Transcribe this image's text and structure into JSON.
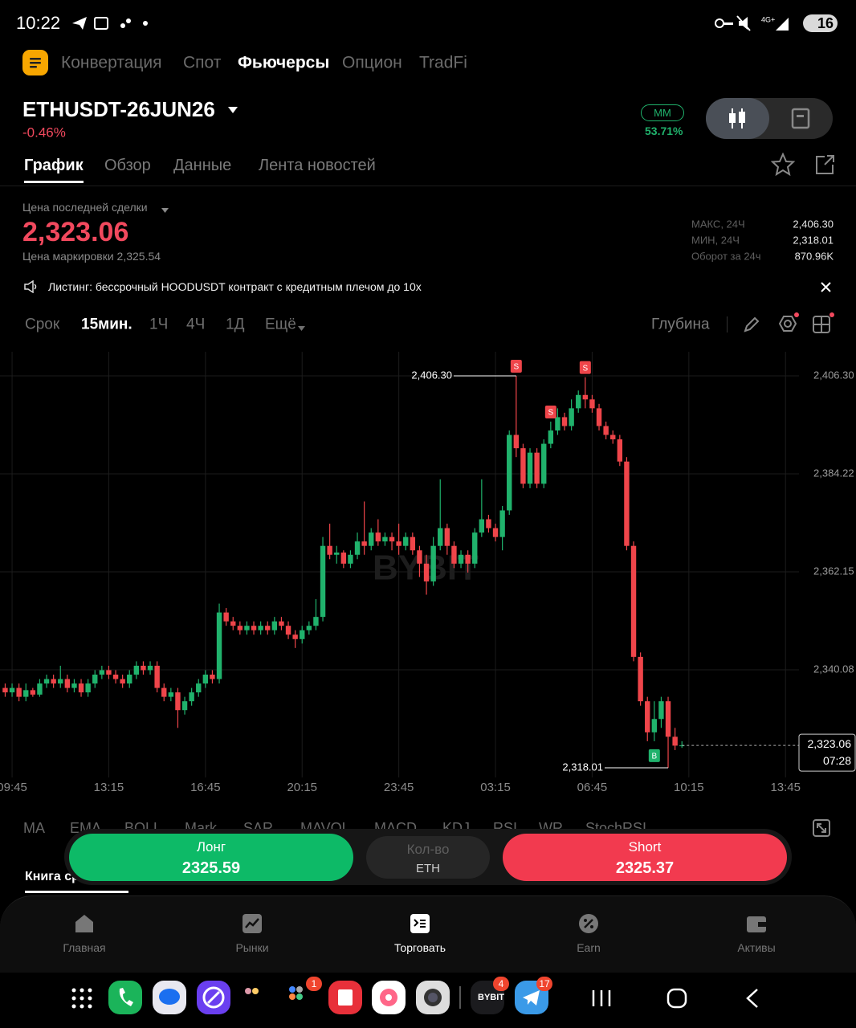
{
  "status_bar": {
    "time": "10:22",
    "battery": "16"
  },
  "top_tabs": [
    "Конвертация",
    "Спот",
    "Фьючерсы",
    "Опцион",
    "TradFi"
  ],
  "symbol": {
    "name": "ETHUSDT-26JUN26",
    "change": "-0.46%",
    "mm_label": "MM",
    "mm_value": "53.71%"
  },
  "sub_tabs": [
    "График",
    "Обзор",
    "Данные",
    "Лента новостей"
  ],
  "price": {
    "last_label": "Цена последней сделки",
    "last": "2,323.06",
    "mark": "Цена маркировки 2,325.54"
  },
  "stats": [
    {
      "label": "МАКС, 24Ч",
      "value": "2,406.30"
    },
    {
      "label": "МИН, 24Ч",
      "value": "2,318.01"
    },
    {
      "label": "Оборот за 24ч",
      "value": "870.96K"
    }
  ],
  "banner": "Листинг: бессрочный HOODUSDT контракт  с кредитным плечом до 10x",
  "timeframes": [
    "Срок",
    "15мин.",
    "1Ч",
    "4Ч",
    "1Д",
    "Ещё"
  ],
  "depth": "Глубина",
  "chart_data": {
    "type": "candlestick",
    "watermark": "BYBIT",
    "up_color": "#20b26c",
    "down_color": "#ef454a",
    "xlim": [
      -0.75,
      114.95
    ],
    "xticks": [
      {
        "value": 1,
        "label": "09:45"
      },
      {
        "value": 15,
        "label": "13:15"
      },
      {
        "value": 29,
        "label": "16:45"
      },
      {
        "value": 43,
        "label": "20:15"
      },
      {
        "value": 57,
        "label": "23:45"
      },
      {
        "value": 71,
        "label": "03:15"
      },
      {
        "value": 85,
        "label": "06:45"
      },
      {
        "value": 99,
        "label": "10:15"
      },
      {
        "value": 113,
        "label": "13:45"
      }
    ],
    "ylim": [
      2315.84,
      2411.73
    ],
    "yticks": [
      {
        "value": 2406.3,
        "label": "2,406.30"
      },
      {
        "value": 2384.22,
        "label": "2,384.22"
      },
      {
        "value": 2362.15,
        "label": "2,362.15"
      },
      {
        "value": 2340.08,
        "label": "2,340.08"
      }
    ],
    "grid": true,
    "candles": [
      [
        2336,
        2337,
        2334,
        2335
      ],
      [
        2335,
        2337,
        2334,
        2336
      ],
      [
        2336,
        2337,
        2333,
        2334
      ],
      [
        2334,
        2337,
        2333,
        2335.5
      ],
      [
        2335.5,
        2336,
        2334,
        2334.5
      ],
      [
        2334.5,
        2338,
        2334,
        2337
      ],
      [
        2337,
        2339,
        2336,
        2338
      ],
      [
        2338,
        2339,
        2336,
        2337
      ],
      [
        2337,
        2341,
        2336,
        2338
      ],
      [
        2338,
        2339,
        2335,
        2336
      ],
      [
        2336,
        2338,
        2335,
        2337
      ],
      [
        2337,
        2338,
        2334,
        2335
      ],
      [
        2335,
        2338,
        2334,
        2337
      ],
      [
        2337,
        2340,
        2336,
        2339
      ],
      [
        2339,
        2341,
        2338,
        2340
      ],
      [
        2340,
        2341,
        2338,
        2339
      ],
      [
        2339,
        2340,
        2337,
        2338
      ],
      [
        2338,
        2339,
        2336,
        2337
      ],
      [
        2337,
        2340,
        2336,
        2339
      ],
      [
        2339,
        2342,
        2338,
        2341
      ],
      [
        2341,
        2342,
        2339,
        2340
      ],
      [
        2340,
        2342,
        2339,
        2341
      ],
      [
        2341,
        2342,
        2335,
        2336
      ],
      [
        2336,
        2337,
        2333,
        2334
      ],
      [
        2334,
        2336,
        2333,
        2335
      ],
      [
        2335,
        2336,
        2327,
        2331
      ],
      [
        2331,
        2334,
        2330,
        2333
      ],
      [
        2333,
        2336,
        2332,
        2335
      ],
      [
        2335,
        2338,
        2334,
        2337
      ],
      [
        2337,
        2340,
        2336,
        2339
      ],
      [
        2339,
        2340,
        2337,
        2338
      ],
      [
        2338,
        2355,
        2337,
        2353
      ],
      [
        2353,
        2354,
        2350,
        2351
      ],
      [
        2351,
        2352,
        2349,
        2350
      ],
      [
        2350,
        2351,
        2348,
        2349
      ],
      [
        2349,
        2351,
        2348,
        2350
      ],
      [
        2350,
        2351,
        2348,
        2349
      ],
      [
        2349,
        2351,
        2348,
        2350
      ],
      [
        2350,
        2351,
        2348,
        2349
      ],
      [
        2349,
        2352,
        2348,
        2351
      ],
      [
        2351,
        2352,
        2349,
        2350
      ],
      [
        2350,
        2351,
        2347,
        2348
      ],
      [
        2348,
        2349,
        2345,
        2347
      ],
      [
        2347,
        2350,
        2346,
        2349
      ],
      [
        2349,
        2351,
        2348,
        2350
      ],
      [
        2350,
        2356,
        2349,
        2352
      ],
      [
        2352,
        2370,
        2351,
        2368
      ],
      [
        2368,
        2373,
        2365,
        2366
      ],
      [
        2366,
        2368,
        2364,
        2366.5
      ],
      [
        2366.5,
        2367,
        2363,
        2364
      ],
      [
        2364,
        2367,
        2363,
        2366
      ],
      [
        2366,
        2371,
        2365,
        2369
      ],
      [
        2369,
        2378,
        2366,
        2368
      ],
      [
        2368,
        2372,
        2367,
        2371
      ],
      [
        2371,
        2374,
        2368,
        2369
      ],
      [
        2369,
        2371,
        2368,
        2370
      ],
      [
        2370,
        2371,
        2367,
        2369
      ],
      [
        2369,
        2373,
        2366,
        2368
      ],
      [
        2368,
        2371,
        2367,
        2370
      ],
      [
        2370,
        2371,
        2366,
        2367
      ],
      [
        2367,
        2368,
        2361,
        2364
      ],
      [
        2364,
        2366,
        2357,
        2360
      ],
      [
        2360,
        2370,
        2359,
        2368
      ],
      [
        2368,
        2383,
        2367,
        2372
      ],
      [
        2372,
        2373,
        2366,
        2368
      ],
      [
        2368,
        2369,
        2363,
        2364
      ],
      [
        2364,
        2367,
        2363,
        2366
      ],
      [
        2366,
        2367,
        2362,
        2364
      ],
      [
        2364,
        2372,
        2363,
        2371
      ],
      [
        2371,
        2383,
        2370,
        2374
      ],
      [
        2374,
        2375,
        2371,
        2372
      ],
      [
        2372,
        2373,
        2369,
        2370
      ],
      [
        2370,
        2377,
        2367,
        2376
      ],
      [
        2376,
        2394,
        2375,
        2393
      ],
      [
        2393,
        2406.3,
        2388,
        2390
      ],
      [
        2390,
        2391,
        2381,
        2382
      ],
      [
        2382,
        2390,
        2381,
        2389
      ],
      [
        2389,
        2390,
        2381,
        2382
      ],
      [
        2382,
        2392,
        2381,
        2391
      ],
      [
        2391,
        2396,
        2390,
        2394
      ],
      [
        2394,
        2399,
        2393,
        2397
      ],
      [
        2397,
        2398,
        2394,
        2395
      ],
      [
        2395,
        2401,
        2394,
        2399
      ],
      [
        2399,
        2403,
        2398,
        2402
      ],
      [
        2402,
        2406,
        2399,
        2401
      ],
      [
        2401,
        2402,
        2398,
        2399
      ],
      [
        2399,
        2400,
        2394,
        2395
      ],
      [
        2395,
        2396,
        2392,
        2393
      ],
      [
        2393,
        2394,
        2391,
        2392
      ],
      [
        2392,
        2393,
        2386,
        2387
      ],
      [
        2387,
        2388,
        2367,
        2368
      ],
      [
        2368,
        2369,
        2342,
        2343
      ],
      [
        2343,
        2344,
        2332,
        2333
      ],
      [
        2333,
        2334,
        2324,
        2326
      ],
      [
        2326,
        2333,
        2324,
        2329
      ],
      [
        2329,
        2334,
        2327,
        2333
      ],
      [
        2333,
        2334,
        2318.01,
        2325
      ],
      [
        2325,
        2327,
        2322,
        2323
      ],
      [
        2323,
        2324,
        2322.5,
        2323.06
      ]
    ],
    "markers": [
      {
        "label": "S",
        "candle": 74
      },
      {
        "label": "S",
        "candle": 79
      },
      {
        "label": "S",
        "candle": 84
      },
      {
        "label": "B",
        "candle": 94
      }
    ],
    "max_label": {
      "value": 2406.3,
      "label": "2,406.30",
      "candle": 74
    },
    "min_label": {
      "value": 2318.01,
      "label": "2,318.01",
      "candle": 96
    },
    "last_price": {
      "value": 2323.06,
      "label": "2,323.06",
      "countdown": "07:28"
    }
  },
  "indicators": [
    "MA",
    "EMA",
    "BOLL",
    "Mark",
    "SAR",
    "MAVOL",
    "MACD",
    "KDJ",
    "RSI",
    "WR",
    "StochRSI"
  ],
  "order_book_tab": "Книга ср",
  "trade": {
    "long_label": "Лонг",
    "long_price": "2325.59",
    "qty_label": "Кол-во",
    "qty_unit": "ETH",
    "short_label": "Short",
    "short_price": "2325.37"
  },
  "nav": [
    "Главная",
    "Рынки",
    "Торговать",
    "Earn",
    "Активы"
  ],
  "dock": {
    "folder_badge": "1",
    "bybit": "BYBIT",
    "bybit_badge": "4",
    "telegram_badge": "17"
  }
}
